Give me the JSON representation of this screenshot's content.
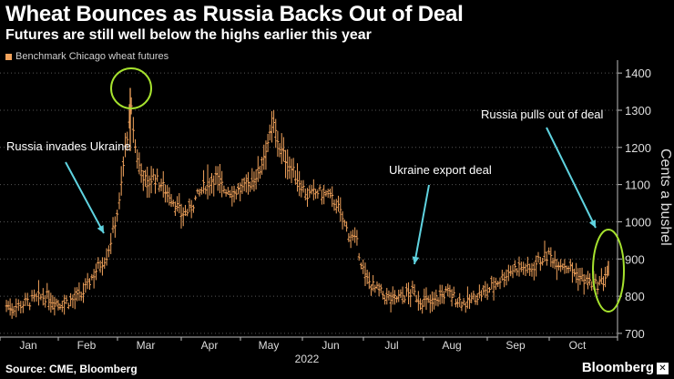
{
  "chart_data": {
    "type": "candlestick",
    "title": "Wheat Bounces as Russia Backs Out of Deal",
    "subtitle": "Futures are still well below the highs earlier this year",
    "legend": "Benchmark Chicago wheat futures",
    "series_color": "#f2a35c",
    "highlight_color": "#a6e22e",
    "arrow_color": "#5fd3e0",
    "ylabel": "Cents a bushel",
    "ylim": [
      690,
      1420
    ],
    "y_ticks": [
      700,
      800,
      900,
      1000,
      1100,
      1200,
      1300,
      1400
    ],
    "x_ticks": [
      "Jan",
      "Feb",
      "Mar",
      "Apr",
      "May",
      "Jun",
      "Jul",
      "Aug",
      "Sep",
      "Oct"
    ],
    "x_year_label": "2022",
    "annotations": [
      {
        "text": "Russia invades Ukraine"
      },
      {
        "text": "Ukraine export deal"
      },
      {
        "text": "Russia pulls out of deal"
      }
    ],
    "series": [
      {
        "name": "Benchmark Chicago wheat futures",
        "points": [
          {
            "date": "2022-01-03",
            "value": 775
          },
          {
            "date": "2022-01-07",
            "value": 770
          },
          {
            "date": "2022-01-12",
            "value": 780
          },
          {
            "date": "2022-01-18",
            "value": 790
          },
          {
            "date": "2022-01-24",
            "value": 800
          },
          {
            "date": "2022-01-28",
            "value": 790
          },
          {
            "date": "2022-02-01",
            "value": 780
          },
          {
            "date": "2022-02-07",
            "value": 790
          },
          {
            "date": "2022-02-11",
            "value": 800
          },
          {
            "date": "2022-02-15",
            "value": 840
          },
          {
            "date": "2022-02-18",
            "value": 870
          },
          {
            "date": "2022-02-23",
            "value": 910
          },
          {
            "date": "2022-02-25",
            "value": 950
          },
          {
            "date": "2022-03-01",
            "value": 1050
          },
          {
            "date": "2022-03-04",
            "value": 1200
          },
          {
            "date": "2022-03-07",
            "value": 1300
          },
          {
            "date": "2022-03-09",
            "value": 1200
          },
          {
            "date": "2022-03-11",
            "value": 1150
          },
          {
            "date": "2022-03-15",
            "value": 1100
          },
          {
            "date": "2022-03-18",
            "value": 1120
          },
          {
            "date": "2022-03-22",
            "value": 1100
          },
          {
            "date": "2022-03-25",
            "value": 1080
          },
          {
            "date": "2022-03-29",
            "value": 1050
          },
          {
            "date": "2022-04-01",
            "value": 1020
          },
          {
            "date": "2022-04-05",
            "value": 1030
          },
          {
            "date": "2022-04-08",
            "value": 1060
          },
          {
            "date": "2022-04-13",
            "value": 1100
          },
          {
            "date": "2022-04-18",
            "value": 1120
          },
          {
            "date": "2022-04-22",
            "value": 1090
          },
          {
            "date": "2022-04-27",
            "value": 1080
          },
          {
            "date": "2022-05-02",
            "value": 1090
          },
          {
            "date": "2022-05-06",
            "value": 1110
          },
          {
            "date": "2022-05-10",
            "value": 1140
          },
          {
            "date": "2022-05-13",
            "value": 1200
          },
          {
            "date": "2022-05-17",
            "value": 1260
          },
          {
            "date": "2022-05-20",
            "value": 1200
          },
          {
            "date": "2022-05-25",
            "value": 1150
          },
          {
            "date": "2022-05-31",
            "value": 1100
          },
          {
            "date": "2022-06-03",
            "value": 1070
          },
          {
            "date": "2022-06-08",
            "value": 1080
          },
          {
            "date": "2022-06-13",
            "value": 1070
          },
          {
            "date": "2022-06-17",
            "value": 1050
          },
          {
            "date": "2022-06-22",
            "value": 980
          },
          {
            "date": "2022-06-27",
            "value": 940
          },
          {
            "date": "2022-07-01",
            "value": 850
          },
          {
            "date": "2022-07-06",
            "value": 820
          },
          {
            "date": "2022-07-11",
            "value": 800
          },
          {
            "date": "2022-07-15",
            "value": 790
          },
          {
            "date": "2022-07-20",
            "value": 800
          },
          {
            "date": "2022-07-25",
            "value": 810
          },
          {
            "date": "2022-07-29",
            "value": 790
          },
          {
            "date": "2022-08-03",
            "value": 780
          },
          {
            "date": "2022-08-08",
            "value": 800
          },
          {
            "date": "2022-08-12",
            "value": 810
          },
          {
            "date": "2022-08-17",
            "value": 790
          },
          {
            "date": "2022-08-22",
            "value": 780
          },
          {
            "date": "2022-08-26",
            "value": 800
          },
          {
            "date": "2022-08-31",
            "value": 810
          },
          {
            "date": "2022-09-06",
            "value": 840
          },
          {
            "date": "2022-09-12",
            "value": 870
          },
          {
            "date": "2022-09-16",
            "value": 880
          },
          {
            "date": "2022-09-21",
            "value": 870
          },
          {
            "date": "2022-09-26",
            "value": 900
          },
          {
            "date": "2022-09-30",
            "value": 910
          },
          {
            "date": "2022-10-05",
            "value": 890
          },
          {
            "date": "2022-10-10",
            "value": 880
          },
          {
            "date": "2022-10-14",
            "value": 860
          },
          {
            "date": "2022-10-19",
            "value": 840
          },
          {
            "date": "2022-10-24",
            "value": 830
          },
          {
            "date": "2022-10-28",
            "value": 840
          },
          {
            "date": "2022-10-31",
            "value": 880
          }
        ]
      }
    ]
  },
  "footer": {
    "source": "Source: CME, Bloomberg",
    "brand": "Bloomberg"
  }
}
